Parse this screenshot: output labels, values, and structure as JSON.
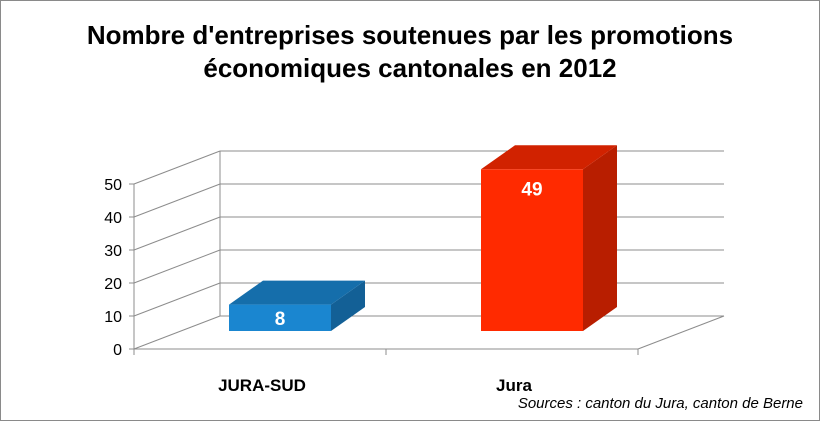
{
  "title_line1": "Nombre d'entreprises soutenues par les promotions",
  "title_line2": "économiques cantonales en 2012",
  "source": "Sources : canton du Jura, canton de Berne",
  "chart_data": {
    "type": "bar",
    "categories": [
      "JURA-SUD",
      "Jura"
    ],
    "values": [
      8,
      49
    ],
    "data_labels": [
      "8",
      "49"
    ],
    "ylim": [
      0,
      50
    ],
    "yticks": [
      "0",
      "10",
      "20",
      "30",
      "40",
      "50"
    ],
    "grid": true,
    "style": "3d",
    "colors": [
      "#1a86d0",
      "#ff2a00"
    ]
  }
}
